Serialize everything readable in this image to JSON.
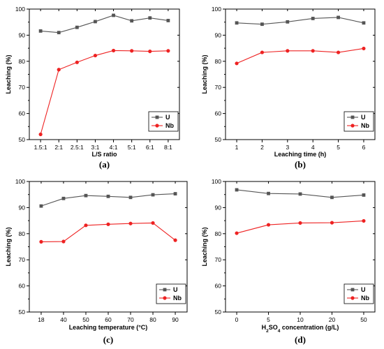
{
  "colors": {
    "U": "#555555",
    "Nb": "#ee2222"
  },
  "chart_data": [
    {
      "type": "line",
      "panel_label": "(a)",
      "xlabel": "L/S ratio",
      "ylabel": "Leaching (%)",
      "categories": [
        "1.5:1",
        "2:1",
        "2.5:1",
        "3:1",
        "4:1",
        "5:1",
        "6:1",
        "8:1"
      ],
      "ylim": [
        50,
        100
      ],
      "yticks": [
        "50",
        "60",
        "70",
        "80",
        "90",
        "100"
      ],
      "legend_position": "lower-right",
      "series": [
        {
          "name": "U",
          "marker": "square",
          "values": [
            91.6,
            91.0,
            93.0,
            95.2,
            97.6,
            95.5,
            96.6,
            95.6
          ]
        },
        {
          "name": "Nb",
          "marker": "circle",
          "values": [
            52.0,
            76.8,
            79.6,
            82.2,
            84.1,
            84.0,
            83.8,
            84.0
          ]
        }
      ]
    },
    {
      "type": "line",
      "panel_label": "(b)",
      "xlabel": "Leaching time (h)",
      "ylabel": "Leaching (%)",
      "categories": [
        "1",
        "2",
        "3",
        "4",
        "5",
        "6"
      ],
      "ylim": [
        50,
        100
      ],
      "yticks": [
        "50",
        "60",
        "70",
        "80",
        "90",
        "100"
      ],
      "legend_position": "lower-right",
      "series": [
        {
          "name": "U",
          "marker": "square",
          "values": [
            94.7,
            94.2,
            95.1,
            96.4,
            96.8,
            94.7
          ]
        },
        {
          "name": "Nb",
          "marker": "circle",
          "values": [
            79.2,
            83.4,
            84.0,
            84.0,
            83.4,
            84.9
          ]
        }
      ]
    },
    {
      "type": "line",
      "panel_label": "(c)",
      "xlabel": "Leaching temperature  (°C)",
      "ylabel": "Leaching (%)",
      "categories": [
        "18",
        "40",
        "50",
        "60",
        "70",
        "80",
        "90"
      ],
      "ylim": [
        50,
        100
      ],
      "yticks": [
        "50",
        "60",
        "70",
        "80",
        "90",
        "100"
      ],
      "legend_position": "lower-right",
      "series": [
        {
          "name": "U",
          "marker": "square",
          "values": [
            90.6,
            93.5,
            94.6,
            94.3,
            93.9,
            94.9,
            95.3
          ]
        },
        {
          "name": "Nb",
          "marker": "circle",
          "values": [
            76.9,
            77.0,
            83.2,
            83.6,
            83.9,
            84.1,
            77.5
          ]
        }
      ]
    },
    {
      "type": "line",
      "panel_label": "(d)",
      "xlabel_parts": [
        "H",
        "2",
        "SO",
        "4",
        " concentration (g/L)"
      ],
      "ylabel": "Leaching (%)",
      "categories": [
        "0",
        "5",
        "10",
        "20",
        "50"
      ],
      "ylim": [
        50,
        100
      ],
      "yticks": [
        "50",
        "60",
        "70",
        "80",
        "90",
        "100"
      ],
      "legend_position": "lower-right",
      "series": [
        {
          "name": "U",
          "marker": "square",
          "values": [
            96.8,
            95.4,
            95.2,
            93.9,
            94.8
          ]
        },
        {
          "name": "Nb",
          "marker": "circle",
          "values": [
            80.2,
            83.4,
            84.1,
            84.2,
            84.9
          ]
        }
      ]
    }
  ]
}
